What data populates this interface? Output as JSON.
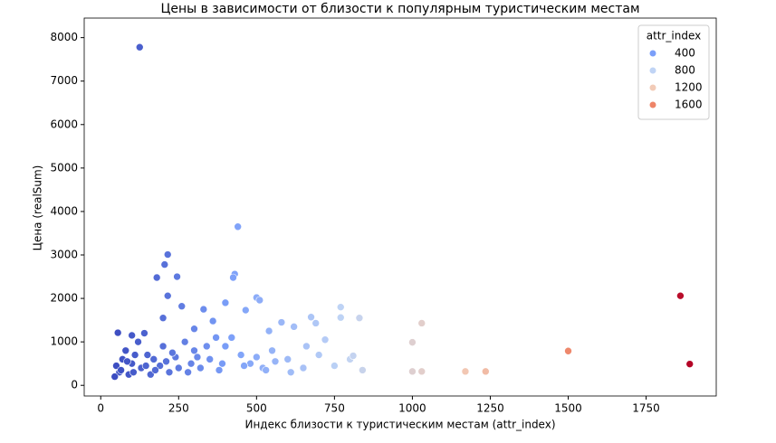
{
  "chart_data": {
    "type": "scatter",
    "title": "Цены в зависимости от близости к популярным туристическим местам",
    "xlabel": "Индекс близости к туристическим местам (attr_index)",
    "ylabel": "Цена (realSum)",
    "x": [
      125,
      440,
      215,
      205,
      245,
      180,
      430,
      425,
      215,
      500,
      510,
      400,
      465,
      770,
      675,
      1030,
      1000,
      1500,
      1860,
      1890,
      1170,
      1235,
      1000,
      1030,
      830,
      770,
      690,
      55,
      100,
      140,
      300,
      360,
      260,
      330,
      200,
      580,
      620,
      540,
      720,
      800,
      840,
      810,
      750,
      650,
      600,
      550,
      480,
      450,
      400,
      350,
      300,
      250,
      200,
      150,
      100,
      60,
      80,
      120,
      170,
      220,
      270,
      320,
      380,
      420,
      50,
      90,
      130,
      160,
      110,
      70,
      190,
      240,
      290,
      340,
      370,
      520,
      560,
      610,
      700,
      660,
      45,
      65,
      85,
      105,
      145,
      175,
      210,
      230,
      280,
      310,
      390,
      460,
      500,
      530
    ],
    "values": [
      7780,
      3650,
      3010,
      2780,
      2500,
      2480,
      2560,
      2480,
      2060,
      2020,
      1960,
      1900,
      1730,
      1800,
      1570,
      1430,
      990,
      790,
      2060,
      490,
      320,
      320,
      320,
      320,
      1550,
      1560,
      1430,
      1210,
      1150,
      1200,
      1300,
      1480,
      1820,
      1750,
      1550,
      1450,
      1350,
      1250,
      1050,
      600,
      350,
      680,
      450,
      400,
      600,
      800,
      500,
      700,
      900,
      600,
      800,
      400,
      900,
      700,
      500,
      300,
      800,
      1000,
      600,
      300,
      1000,
      400,
      350,
      1100,
      450,
      250,
      400,
      250,
      700,
      600,
      450,
      650,
      500,
      900,
      1100,
      400,
      550,
      300,
      700,
      900,
      200,
      350,
      550,
      300,
      450,
      350,
      550,
      750,
      300,
      650,
      500,
      450,
      650,
      350
    ],
    "color_scale": {
      "range": [
        40,
        1890
      ],
      "colors": [
        "#3b4cc0",
        "#7b9ff9",
        "#c0d4f5",
        "#f2cbb7",
        "#ee8468",
        "#b40426"
      ]
    },
    "xlim": [
      -53,
      1975
    ],
    "xticks": [
      0,
      250,
      500,
      750,
      1000,
      1250,
      1500,
      1750
    ],
    "ylim": [
      -245,
      8450
    ],
    "yticks": [
      0,
      1000,
      2000,
      3000,
      4000,
      5000,
      6000,
      7000,
      8000
    ],
    "legend": {
      "title": "attr_index",
      "loc": "upper right",
      "entries": [
        {
          "label": 400,
          "color": "#7b9ff9"
        },
        {
          "label": 800,
          "color": "#c0d4f5"
        },
        {
          "label": 1200,
          "color": "#f2cbb7"
        },
        {
          "label": 1600,
          "color": "#ee8468"
        }
      ]
    }
  }
}
